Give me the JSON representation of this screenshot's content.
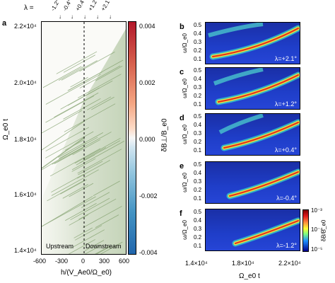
{
  "figure": {
    "panel_a": {
      "letter": "a",
      "y_label": "Ω_e0 t",
      "y_ticks": [
        "2.2×10⁴",
        "2.0×10⁴",
        "1.8×10⁴",
        "1.6×10⁴",
        "1.4×10⁴"
      ],
      "x_label": "h/(V_Ae0/Ω_e0)",
      "x_ticks": [
        "-600",
        "-300",
        "0",
        "300",
        "600"
      ],
      "lambda_title": "λ =",
      "lambda_ticks": [
        "-1.2°",
        "-0.4°",
        "+0.4°",
        "+1.2°",
        "+2.1°"
      ],
      "region_left": "Upstream",
      "region_right": "Downstream",
      "colorbar_label": "δB⊥/B_e0",
      "colorbar_ticks": [
        "0.004",
        "0.002",
        "0.000",
        "-0.002",
        "-0.004"
      ],
      "colors": {
        "positive": "#c0392b",
        "negative": "#2b6fa3",
        "signal": "#8fae7a"
      }
    },
    "spectrograms": [
      {
        "letter": "b",
        "lambda": "λ=+2.1°"
      },
      {
        "letter": "c",
        "lambda": "λ=+1.2°"
      },
      {
        "letter": "d",
        "lambda": "λ=+0.4°"
      },
      {
        "letter": "e",
        "lambda": "λ=-0.4°"
      },
      {
        "letter": "f",
        "lambda": "λ=-1.2°"
      }
    ],
    "spec_y_label": "ω/Ω_e0",
    "spec_y_ticks": [
      "0.5",
      "0.4",
      "0.3",
      "0.2",
      "0.1"
    ],
    "spec_x_label": "Ω_e0 t",
    "spec_x_ticks": [
      "1.4×10⁴",
      "1.8×10⁴",
      "2.2×10⁴"
    ],
    "spec_colorbar_label": "δB/B_e0",
    "spec_colorbar_ticks": [
      "10⁻³",
      "10⁻⁴",
      "10⁻⁵"
    ]
  }
}
